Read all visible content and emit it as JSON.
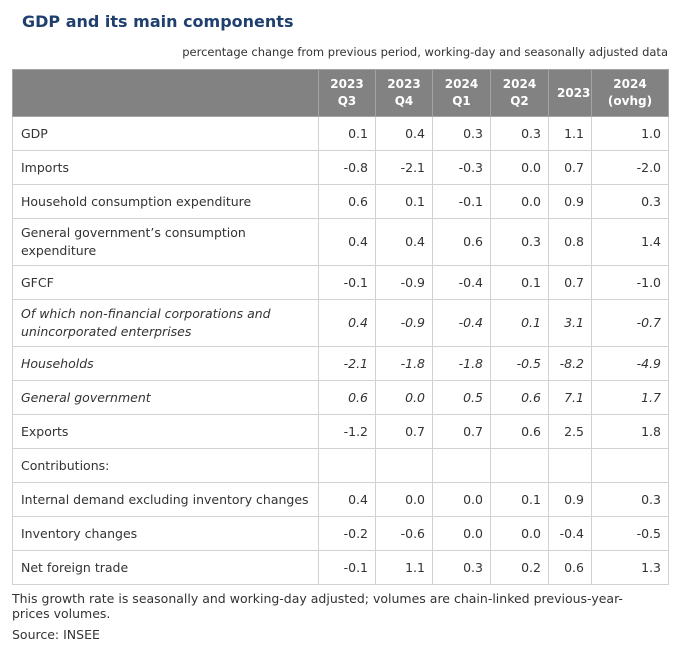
{
  "title": "GDP and its main components",
  "subtitle": "percentage change from previous period, working-day and seasonally adjusted data",
  "columns": [
    {
      "line1": "2023",
      "line2": "Q3"
    },
    {
      "line1": "2023",
      "line2": "Q4"
    },
    {
      "line1": "2024",
      "line2": "Q1"
    },
    {
      "line1": "2024",
      "line2": "Q2"
    },
    {
      "line1": "2023",
      "line2": ""
    },
    {
      "line1": "2024",
      "line2": "(ovhg)"
    }
  ],
  "rows": [
    {
      "label": "GDP",
      "values": [
        "0.1",
        "0.4",
        "0.3",
        "0.3",
        "1.1",
        "1.0"
      ]
    },
    {
      "label": "Imports",
      "values": [
        "-0.8",
        "-2.1",
        "-0.3",
        "0.0",
        "0.7",
        "-2.0"
      ]
    },
    {
      "label": "Household consumption expenditure",
      "values": [
        "0.6",
        "0.1",
        "-0.1",
        "0.0",
        "0.9",
        "0.3"
      ]
    },
    {
      "label": "General government’s consumption expenditure",
      "values": [
        "0.4",
        "0.4",
        "0.6",
        "0.3",
        "0.8",
        "1.4"
      ]
    },
    {
      "label": "GFCF",
      "values": [
        "-0.1",
        "-0.9",
        "-0.4",
        "0.1",
        "0.7",
        "-1.0"
      ]
    },
    {
      "label": "Of which non-financial corporations and unincorporated enterprises",
      "values": [
        "0.4",
        "-0.9",
        "-0.4",
        "0.1",
        "3.1",
        "-0.7"
      ]
    },
    {
      "label": "Households",
      "values": [
        "-2.1",
        "-1.8",
        "-1.8",
        "-0.5",
        "-8.2",
        "-4.9"
      ]
    },
    {
      "label": "General government",
      "values": [
        "0.6",
        "0.0",
        "0.5",
        "0.6",
        "7.1",
        "1.7"
      ]
    },
    {
      "label": "Exports",
      "values": [
        "-1.2",
        "0.7",
        "0.7",
        "0.6",
        "2.5",
        "1.8"
      ]
    },
    {
      "label": "Contributions:",
      "values": [
        "",
        "",
        "",
        "",
        "",
        ""
      ]
    },
    {
      "label": "Internal demand excluding inventory changes",
      "values": [
        "0.4",
        "0.0",
        "0.0",
        "0.1",
        "0.9",
        "0.3"
      ]
    },
    {
      "label": "Inventory changes",
      "values": [
        "-0.2",
        "-0.6",
        "0.0",
        "0.0",
        "-0.4",
        "-0.5"
      ]
    },
    {
      "label": "Net foreign trade",
      "values": [
        "-0.1",
        "1.1",
        "0.3",
        "0.2",
        "0.6",
        "1.3"
      ]
    }
  ],
  "note": "This growth rate is seasonally and working-day adjusted; volumes are chain-linked previous-year-prices volumes.",
  "source": "Source: INSEE"
}
